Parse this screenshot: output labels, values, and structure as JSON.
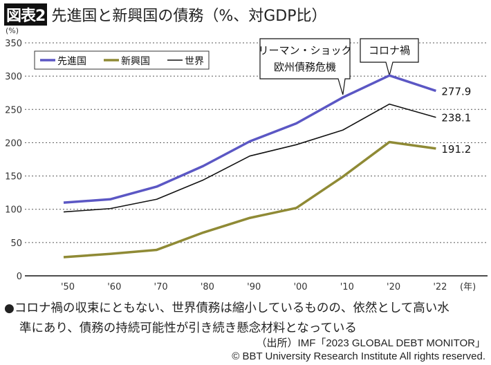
{
  "header": {
    "badge": "図表2",
    "title": "先進国と新興国の債務（%、対GDP比）"
  },
  "chart_data": {
    "type": "line",
    "title": "先進国と新興国の債務（%、対GDP比）",
    "ylabel": "(%)",
    "xunit": "(年)",
    "categories": [
      "'50",
      "'60",
      "'70",
      "'80",
      "'90",
      "'00",
      "'10",
      "'20",
      "'22"
    ],
    "ylim": [
      0,
      350
    ],
    "yticks": [
      0,
      50,
      100,
      150,
      200,
      250,
      300,
      350
    ],
    "grid": "horizontal dotted",
    "legend": "top-left",
    "series": [
      {
        "name": "先進国",
        "color": "#5b57c4",
        "values": [
          110,
          115,
          134,
          165,
          202,
          229,
          268,
          301,
          277.9
        ],
        "end_label": "277.9"
      },
      {
        "name": "新興国",
        "color": "#8f8a35",
        "values": [
          28,
          33,
          39,
          65,
          87,
          102,
          149,
          201,
          191.2
        ],
        "end_label": "191.2"
      },
      {
        "name": "世界",
        "color": "#111111",
        "values": [
          96,
          101,
          115,
          144,
          180,
          197,
          219,
          258,
          238.1
        ],
        "end_label": "238.1"
      }
    ],
    "annotations": [
      {
        "text": [
          "リーマン・ショック",
          "欧州債務危機"
        ],
        "category": "'10"
      },
      {
        "text": [
          "コロナ禍"
        ],
        "category": "'20"
      }
    ]
  },
  "note": {
    "bullet": "●",
    "line1": "コロナ禍の収束にともない、世界債務は縮小しているものの、依然として高い水",
    "line2": "準にあり、債務の持続可能性が引き続き懸念材料となっている"
  },
  "source": {
    "line1": "（出所）IMF「2023 GLOBAL DEBT MONITOR」",
    "line2": "© BBT University Research Institute All rights reserved."
  }
}
